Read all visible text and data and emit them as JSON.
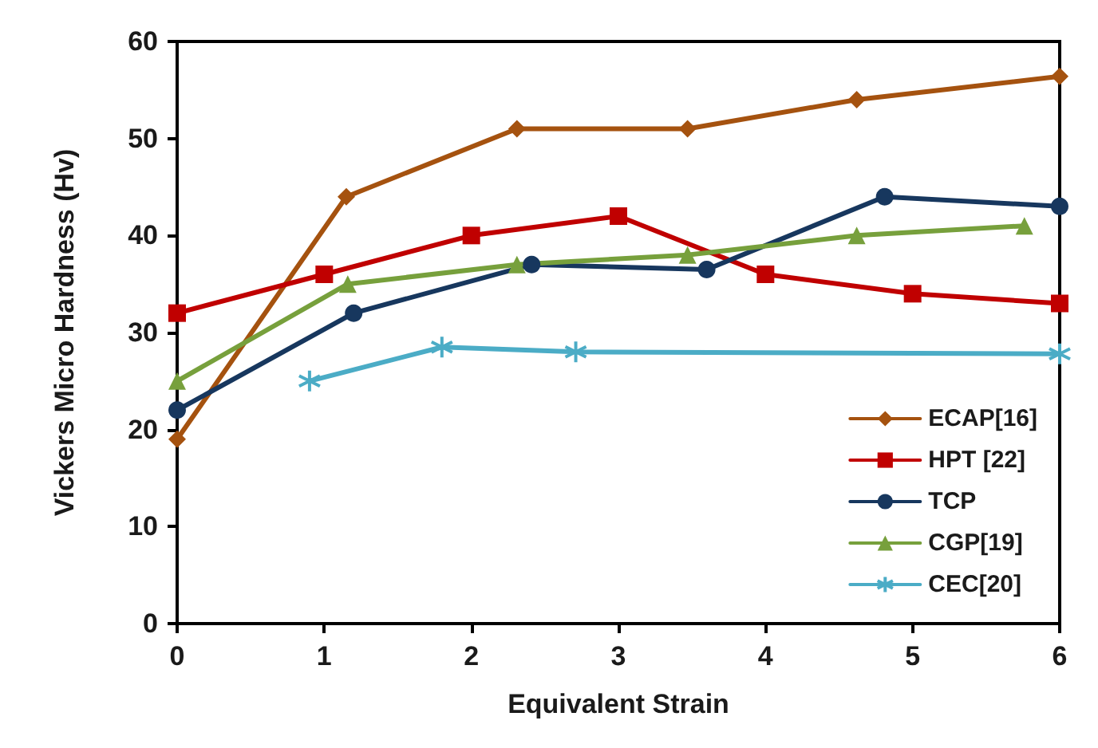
{
  "chart_data": {
    "type": "line",
    "xlabel": "Equivalent Strain",
    "ylabel": "Vickers Micro Hardness (Hv)",
    "xlim": [
      0,
      6
    ],
    "xticks": [
      0,
      1,
      2,
      3,
      4,
      5,
      6
    ],
    "ylim": [
      0,
      60
    ],
    "yticks": [
      0,
      10,
      20,
      30,
      40,
      50,
      60
    ],
    "grid": false,
    "legend": "bottom right",
    "line_style": "solid",
    "series": [
      {
        "name": "ECAP[16]",
        "color": "#a5520f",
        "marker": "diamond",
        "x": [
          0,
          1.15,
          2.31,
          3.47,
          4.62,
          6
        ],
        "values": [
          19,
          44,
          51,
          51,
          54,
          56.4
        ]
      },
      {
        "name": "HPT [22]",
        "color": "#c00000",
        "marker": "square",
        "x": [
          0,
          1,
          2,
          3,
          4,
          5,
          6
        ],
        "values": [
          32,
          36,
          40,
          42,
          36,
          34,
          33
        ]
      },
      {
        "name": "TCP",
        "color": "#17375e",
        "marker": "circle",
        "x": [
          0,
          1.2,
          2.41,
          3.6,
          4.81,
          6
        ],
        "values": [
          22,
          32,
          37,
          36.5,
          44,
          43
        ]
      },
      {
        "name": "CGP[19]",
        "color": "#77a03c",
        "marker": "triangle",
        "x": [
          0,
          1.16,
          2.31,
          3.47,
          4.62,
          5.76
        ],
        "values": [
          25,
          35,
          37,
          38,
          40,
          41
        ]
      },
      {
        "name": "CEC[20]",
        "color": "#4bacc6",
        "marker": "cross",
        "x": [
          0.9,
          1.8,
          2.71,
          6
        ],
        "values": [
          25,
          28.5,
          28,
          27.8
        ]
      }
    ]
  }
}
